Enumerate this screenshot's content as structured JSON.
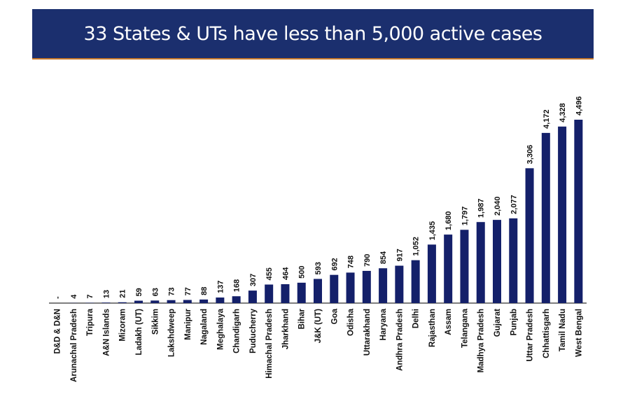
{
  "title": "33 States & UTs have less than 5,000 active cases",
  "colors": {
    "banner": "#1b2f6e",
    "bar": "#14206a",
    "banner_rule": "#c7782a"
  },
  "chart_data": {
    "type": "bar",
    "title": "33 States & UTs have less than 5,000 active cases",
    "xlabel": "",
    "ylabel": "",
    "ylim": [
      0,
      4500
    ],
    "grid": false,
    "categories": [
      "D&D & D&N",
      "Arunachal Pradesh",
      "Tripura",
      "A&N Islands",
      "Mizoram",
      "Ladakh (UT)",
      "Sikkim",
      "Lakshdweep",
      "Manipur",
      "Nagaland",
      "Meghalaya",
      "Chandigarh",
      "Puducherry",
      "Himachal Pradesh",
      "Jharkhand",
      "Bihar",
      "J&K (UT)",
      "Goa",
      "Odisha",
      "Uttarakhand",
      "Haryana",
      "Andhra Pradesh",
      "Delhi",
      "Rajasthan",
      "Assam",
      "Telangana",
      "Madhya Pradesh",
      "Gujarat",
      "Punjab",
      "Uttar Pradesh",
      "Chhattisgarh",
      "Tamil Nadu",
      "West Bengal"
    ],
    "values": [
      0,
      4,
      7,
      13,
      21,
      59,
      63,
      73,
      77,
      88,
      137,
      168,
      307,
      455,
      464,
      500,
      593,
      692,
      748,
      790,
      854,
      917,
      1052,
      1435,
      1680,
      1797,
      1987,
      2040,
      2077,
      3306,
      4172,
      4328,
      4496
    ],
    "data_labels": [
      "-",
      "4",
      "7",
      "13",
      "21",
      "59",
      "63",
      "73",
      "77",
      "88",
      "137",
      "168",
      "307",
      "455",
      "464",
      "500",
      "593",
      "692",
      "748",
      "790",
      "854",
      "917",
      "1,052",
      "1,435",
      "1,680",
      "1,797",
      "1,987",
      "2,040",
      "2,077",
      "3,306",
      "4,172",
      "4,328",
      "4,496"
    ]
  }
}
